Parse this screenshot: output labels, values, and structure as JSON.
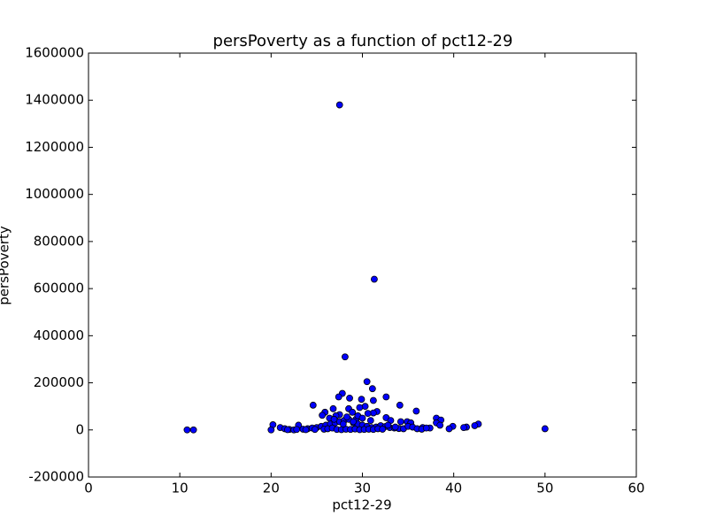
{
  "chart_data": {
    "type": "scatter",
    "title": "persPoverty as a function of pct12-29",
    "x_label": "pct12-29",
    "y_label": "persPoverty",
    "color": "#0000ff",
    "xlim": [
      0,
      60
    ],
    "xticks": [
      0,
      10,
      20,
      30,
      40,
      50,
      60
    ],
    "ylim": [
      -200000,
      1600000
    ],
    "yticks": [
      -200000,
      0,
      200000,
      400000,
      600000,
      800000,
      1000000,
      1200000,
      1400000,
      1600000
    ],
    "grid": false,
    "x": [
      27.5,
      31.3,
      28.1,
      30.5,
      31.1,
      27.8,
      27.4,
      32.6,
      28.6,
      29.9,
      31.2,
      24.6,
      34.1,
      30.3,
      29.7,
      28.5,
      26.8,
      35.9,
      31.6,
      25.9,
      31.2,
      30.6,
      27.5,
      25.6,
      28.9,
      27.1,
      32.6,
      38.1,
      26.4,
      38.6,
      29.3,
      33.1,
      34.2,
      34.9,
      35.3,
      38.1,
      42.7,
      20.2,
      23.0,
      42.3,
      39.9,
      41.4,
      41.1,
      36.6,
      37.4,
      50.0,
      10.8,
      11.5,
      20.0,
      21.0,
      21.5,
      22.0,
      22.5,
      23.5,
      24.0,
      24.5,
      25.0,
      25.5,
      26.0,
      26.5,
      27.0,
      27.5,
      28.0,
      28.5,
      29.0,
      29.5,
      30.0,
      30.5,
      31.0,
      31.5,
      32.0,
      32.5,
      33.0,
      33.5,
      34.0,
      34.5,
      35.0,
      35.5,
      36.0,
      36.5,
      37.0,
      38.5,
      39.5,
      21.8,
      22.8,
      23.8,
      24.8,
      25.8,
      26.2,
      26.7,
      27.2,
      27.7,
      28.2,
      28.7,
      29.2,
      29.7,
      30.2,
      30.7,
      31.2,
      31.7,
      32.2,
      32.8,
      33.6,
      26.9,
      28.3,
      29.5,
      30.9,
      27.9,
      29.0,
      30.0
    ],
    "values": [
      1380000,
      640000,
      310000,
      205000,
      175000,
      155000,
      140000,
      140000,
      135000,
      130000,
      125000,
      105000,
      105000,
      100000,
      95000,
      90000,
      90000,
      80000,
      78000,
      75000,
      72000,
      70000,
      65000,
      62000,
      75000,
      60000,
      52000,
      50000,
      50000,
      42000,
      45000,
      40000,
      35000,
      35000,
      30000,
      30000,
      25000,
      22000,
      20000,
      18000,
      15000,
      12000,
      10000,
      10000,
      8000,
      5000,
      0,
      0,
      0,
      10000,
      5000,
      2000,
      0,
      3000,
      5000,
      8000,
      10000,
      15000,
      20000,
      25000,
      30000,
      35000,
      40000,
      45000,
      30000,
      25000,
      20000,
      15000,
      10000,
      12000,
      18000,
      14000,
      10000,
      8000,
      6000,
      5000,
      15000,
      12000,
      5000,
      3000,
      8000,
      20000,
      5000,
      1000,
      2000,
      1000,
      2000,
      3000,
      5000,
      8000,
      2000,
      1000,
      3000,
      2000,
      4000,
      1000,
      2000,
      3000,
      2000,
      5000,
      3000,
      20000,
      12000,
      45000,
      55000,
      60000,
      40000,
      25000,
      35000,
      50000
    ]
  }
}
